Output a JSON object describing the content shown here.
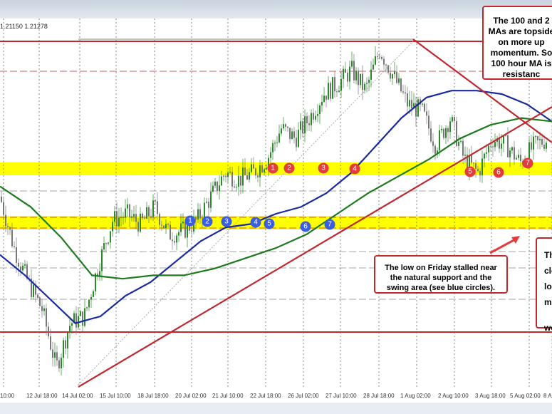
{
  "header": {
    "ohlc_text": "1.21150 1.21278"
  },
  "chart_data": {
    "type": "candlestick",
    "x_tick_labels": [
      "10:00",
      "12 Jul 18:00",
      "14 Jul 02:00",
      "15 Jul 10:00",
      "18 Jul 18:00",
      "20 Jul 02:00",
      "21 Jul 10:00",
      "22 Jul 18:00",
      "26 Jul 02:00",
      "27 Jul 10:00",
      "28 Jul 18:00",
      "1 Aug 02:00",
      "2 Aug 10:00",
      "3 Aug 18:00",
      "5 Aug 02:00",
      "8 A"
    ],
    "ylim": [
      0,
      100
    ],
    "price_path": [
      55,
      40,
      30,
      22,
      5,
      18,
      20,
      35,
      48,
      50,
      47,
      52,
      44,
      45,
      48,
      55,
      62,
      60,
      62,
      66,
      75,
      72,
      78,
      85,
      88,
      92,
      86,
      98,
      90,
      82,
      80,
      70,
      78,
      66,
      62,
      72,
      70,
      65,
      70,
      72
    ],
    "series": [
      {
        "kind": "ma100",
        "color": "#1a2aa0",
        "values": [
          38,
          32,
          25,
          18,
          20,
          26,
          30,
          36,
          42,
          46,
          47,
          50,
          52,
          56,
          62,
          70,
          78,
          84,
          86,
          86,
          85,
          82,
          77
        ]
      },
      {
        "kind": "ma200",
        "color": "#1e7a1e",
        "values": [
          58,
          52,
          43,
          32,
          31,
          32,
          32,
          34,
          37,
          40,
          44,
          50,
          56,
          61,
          66,
          72,
          76,
          78,
          77
        ]
      }
    ],
    "horizontal_lines_color": "#c0282d",
    "support_band_color": "#ffff00",
    "red_markers": [
      "1",
      "2",
      "3",
      "4",
      "5",
      "6",
      "7"
    ],
    "blue_markers": [
      "1",
      "2",
      "3",
      "4",
      "5",
      "6",
      "7"
    ],
    "annotations": {
      "top_right": [
        "The 100 and 2",
        "MAs are topside",
        "on more up",
        "momentum. So",
        "100 hour MA is",
        "resistanc"
      ],
      "middle": [
        "The low on Friday stalled near",
        "the natural support and the",
        "swing area (see blue circles)."
      ],
      "right": [
        "Th",
        "clo",
        "lo",
        "mo",
        "",
        "we"
      ]
    }
  }
}
